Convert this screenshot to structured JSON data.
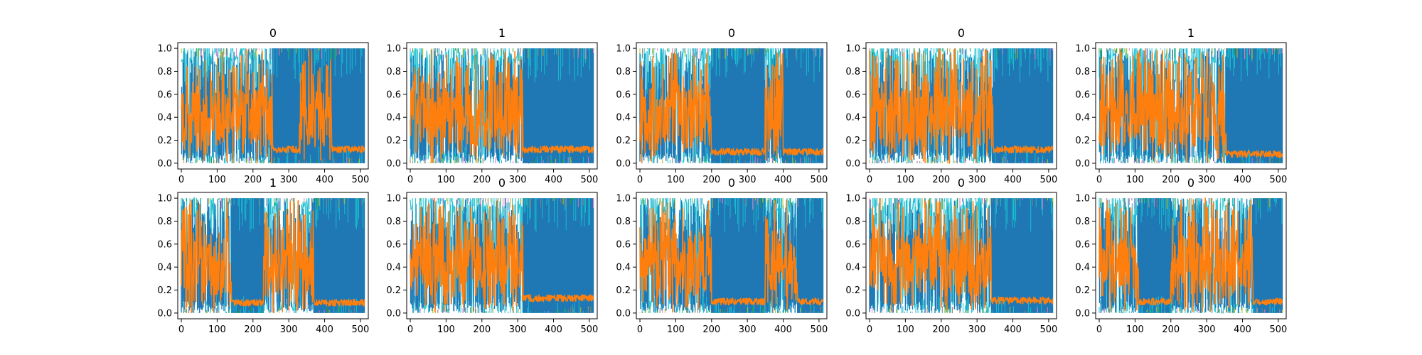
{
  "figure": {
    "panel_titles": [
      "0",
      "1",
      "0",
      "0",
      "1",
      "1",
      "0",
      "0",
      "0",
      "0"
    ]
  },
  "chart_data": [
    {
      "type": "line",
      "title": "0",
      "xlim": [
        -10,
        522
      ],
      "ylim": [
        -0.05,
        1.05
      ],
      "xticks": [
        "0",
        "100",
        "200",
        "300",
        "400",
        "500"
      ],
      "yticks": [
        "0.0",
        "0.2",
        "0.4",
        "0.6",
        "0.8",
        "1.0"
      ],
      "grid": false,
      "series": [
        {
          "color": "#ff7f0e",
          "blue_regions": [
            [
              255,
              512
            ]
          ],
          "orange_band_high": [
            [
              0,
              255
            ]
          ],
          "orange_band_high_late": [
            [
              330,
              420
            ]
          ],
          "baseline": 0.12
        }
      ]
    },
    {
      "type": "line",
      "title": "1",
      "xlim": [
        -10,
        522
      ],
      "ylim": [
        -0.05,
        1.05
      ],
      "xticks": [
        "0",
        "100",
        "200",
        "300",
        "400",
        "500"
      ],
      "yticks": [
        "0.0",
        "0.2",
        "0.4",
        "0.6",
        "0.8",
        "1.0"
      ],
      "grid": false,
      "series": [
        {
          "color": "#ff7f0e",
          "blue_regions": [
            [
              315,
              512
            ]
          ],
          "orange_band_high": [
            [
              0,
              315
            ]
          ],
          "baseline": 0.12
        }
      ]
    },
    {
      "type": "line",
      "title": "0",
      "xlim": [
        -10,
        522
      ],
      "ylim": [
        -0.05,
        1.05
      ],
      "xticks": [
        "0",
        "100",
        "200",
        "300",
        "400",
        "500"
      ],
      "yticks": [
        "0.0",
        "0.2",
        "0.4",
        "0.6",
        "0.8",
        "1.0"
      ],
      "grid": false,
      "series": [
        {
          "color": "#ff7f0e",
          "blue_regions": [
            [
              200,
              350
            ],
            [
              400,
              512
            ]
          ],
          "orange_band_high": [
            [
              0,
              200
            ]
          ],
          "orange_band_high_late": [
            [
              350,
              400
            ]
          ],
          "baseline": 0.1
        }
      ]
    },
    {
      "type": "line",
      "title": "0",
      "xlim": [
        -10,
        522
      ],
      "ylim": [
        -0.05,
        1.05
      ],
      "xticks": [
        "0",
        "100",
        "200",
        "300",
        "400",
        "500"
      ],
      "yticks": [
        "0.0",
        "0.2",
        "0.4",
        "0.6",
        "0.8",
        "1.0"
      ],
      "grid": false,
      "series": [
        {
          "color": "#ff7f0e",
          "blue_regions": [
            [
              345,
              512
            ]
          ],
          "orange_band_high": [
            [
              0,
              345
            ]
          ],
          "baseline": 0.12
        }
      ]
    },
    {
      "type": "line",
      "title": "1",
      "xlim": [
        -10,
        522
      ],
      "ylim": [
        -0.05,
        1.05
      ],
      "xticks": [
        "0",
        "100",
        "200",
        "300",
        "400",
        "500"
      ],
      "yticks": [
        "0.0",
        "0.2",
        "0.4",
        "0.6",
        "0.8",
        "1.0"
      ],
      "grid": false,
      "series": [
        {
          "color": "#ff7f0e",
          "blue_regions": [
            [
              355,
              512
            ]
          ],
          "orange_band_high": [
            [
              0,
              355
            ]
          ],
          "baseline": 0.08
        }
      ]
    },
    {
      "type": "line",
      "title": "1",
      "xlim": [
        -10,
        522
      ],
      "ylim": [
        -0.05,
        1.05
      ],
      "xticks": [
        "0",
        "100",
        "200",
        "300",
        "400",
        "500"
      ],
      "yticks": [
        "0.0",
        "0.2",
        "0.4",
        "0.6",
        "0.8",
        "1.0"
      ],
      "grid": false,
      "series": [
        {
          "color": "#ff7f0e",
          "blue_regions": [
            [
              140,
              230
            ],
            [
              370,
              512
            ]
          ],
          "orange_band_high": [
            [
              0,
              140
            ]
          ],
          "orange_band_high_late": [
            [
              230,
              370
            ]
          ],
          "baseline": 0.09
        }
      ]
    },
    {
      "type": "line",
      "title": "0",
      "xlim": [
        -10,
        522
      ],
      "ylim": [
        -0.05,
        1.05
      ],
      "xticks": [
        "0",
        "100",
        "200",
        "300",
        "400",
        "500"
      ],
      "yticks": [
        "0.0",
        "0.2",
        "0.4",
        "0.6",
        "0.8",
        "1.0"
      ],
      "grid": false,
      "series": [
        {
          "color": "#ff7f0e",
          "blue_regions": [
            [
              315,
              512
            ]
          ],
          "orange_band_high": [
            [
              0,
              315
            ]
          ],
          "baseline": 0.13
        }
      ]
    },
    {
      "type": "line",
      "title": "0",
      "xlim": [
        -10,
        522
      ],
      "ylim": [
        -0.05,
        1.05
      ],
      "xticks": [
        "0",
        "100",
        "200",
        "300",
        "400",
        "500"
      ],
      "yticks": [
        "0.0",
        "0.2",
        "0.4",
        "0.6",
        "0.8",
        "1.0"
      ],
      "grid": false,
      "series": [
        {
          "color": "#ff7f0e",
          "blue_regions": [
            [
              200,
              350
            ],
            [
              440,
              512
            ]
          ],
          "orange_band_high": [
            [
              0,
              200
            ]
          ],
          "orange_band_high_late": [
            [
              350,
              440
            ]
          ],
          "baseline": 0.1
        }
      ]
    },
    {
      "type": "line",
      "title": "0",
      "xlim": [
        -10,
        522
      ],
      "ylim": [
        -0.05,
        1.05
      ],
      "xticks": [
        "0",
        "100",
        "200",
        "300",
        "400",
        "500"
      ],
      "yticks": [
        "0.0",
        "0.2",
        "0.4",
        "0.6",
        "0.8",
        "1.0"
      ],
      "grid": false,
      "series": [
        {
          "color": "#ff7f0e",
          "blue_regions": [
            [
              340,
              512
            ]
          ],
          "orange_band_high": [
            [
              0,
              340
            ]
          ],
          "baseline": 0.11
        }
      ]
    },
    {
      "type": "line",
      "title": "0",
      "xlim": [
        -10,
        522
      ],
      "ylim": [
        -0.05,
        1.05
      ],
      "xticks": [
        "0",
        "100",
        "200",
        "300",
        "400",
        "500"
      ],
      "yticks": [
        "0.0",
        "0.2",
        "0.4",
        "0.6",
        "0.8",
        "1.0"
      ],
      "grid": false,
      "series": [
        {
          "color": "#ff7f0e",
          "blue_regions": [
            [
              110,
              200
            ],
            [
              430,
              512
            ]
          ],
          "orange_band_high": [
            [
              0,
              110
            ]
          ],
          "orange_band_high_late": [
            [
              200,
              430
            ]
          ],
          "baseline": 0.1
        }
      ]
    }
  ],
  "colors": {
    "blue": "#1f77b4",
    "orange": "#ff7f0e",
    "cyan": "#17becf",
    "green": "#2ca02c",
    "olive": "#bcbd22",
    "pink": "#e377c2",
    "gray": "#7f7f7f"
  }
}
